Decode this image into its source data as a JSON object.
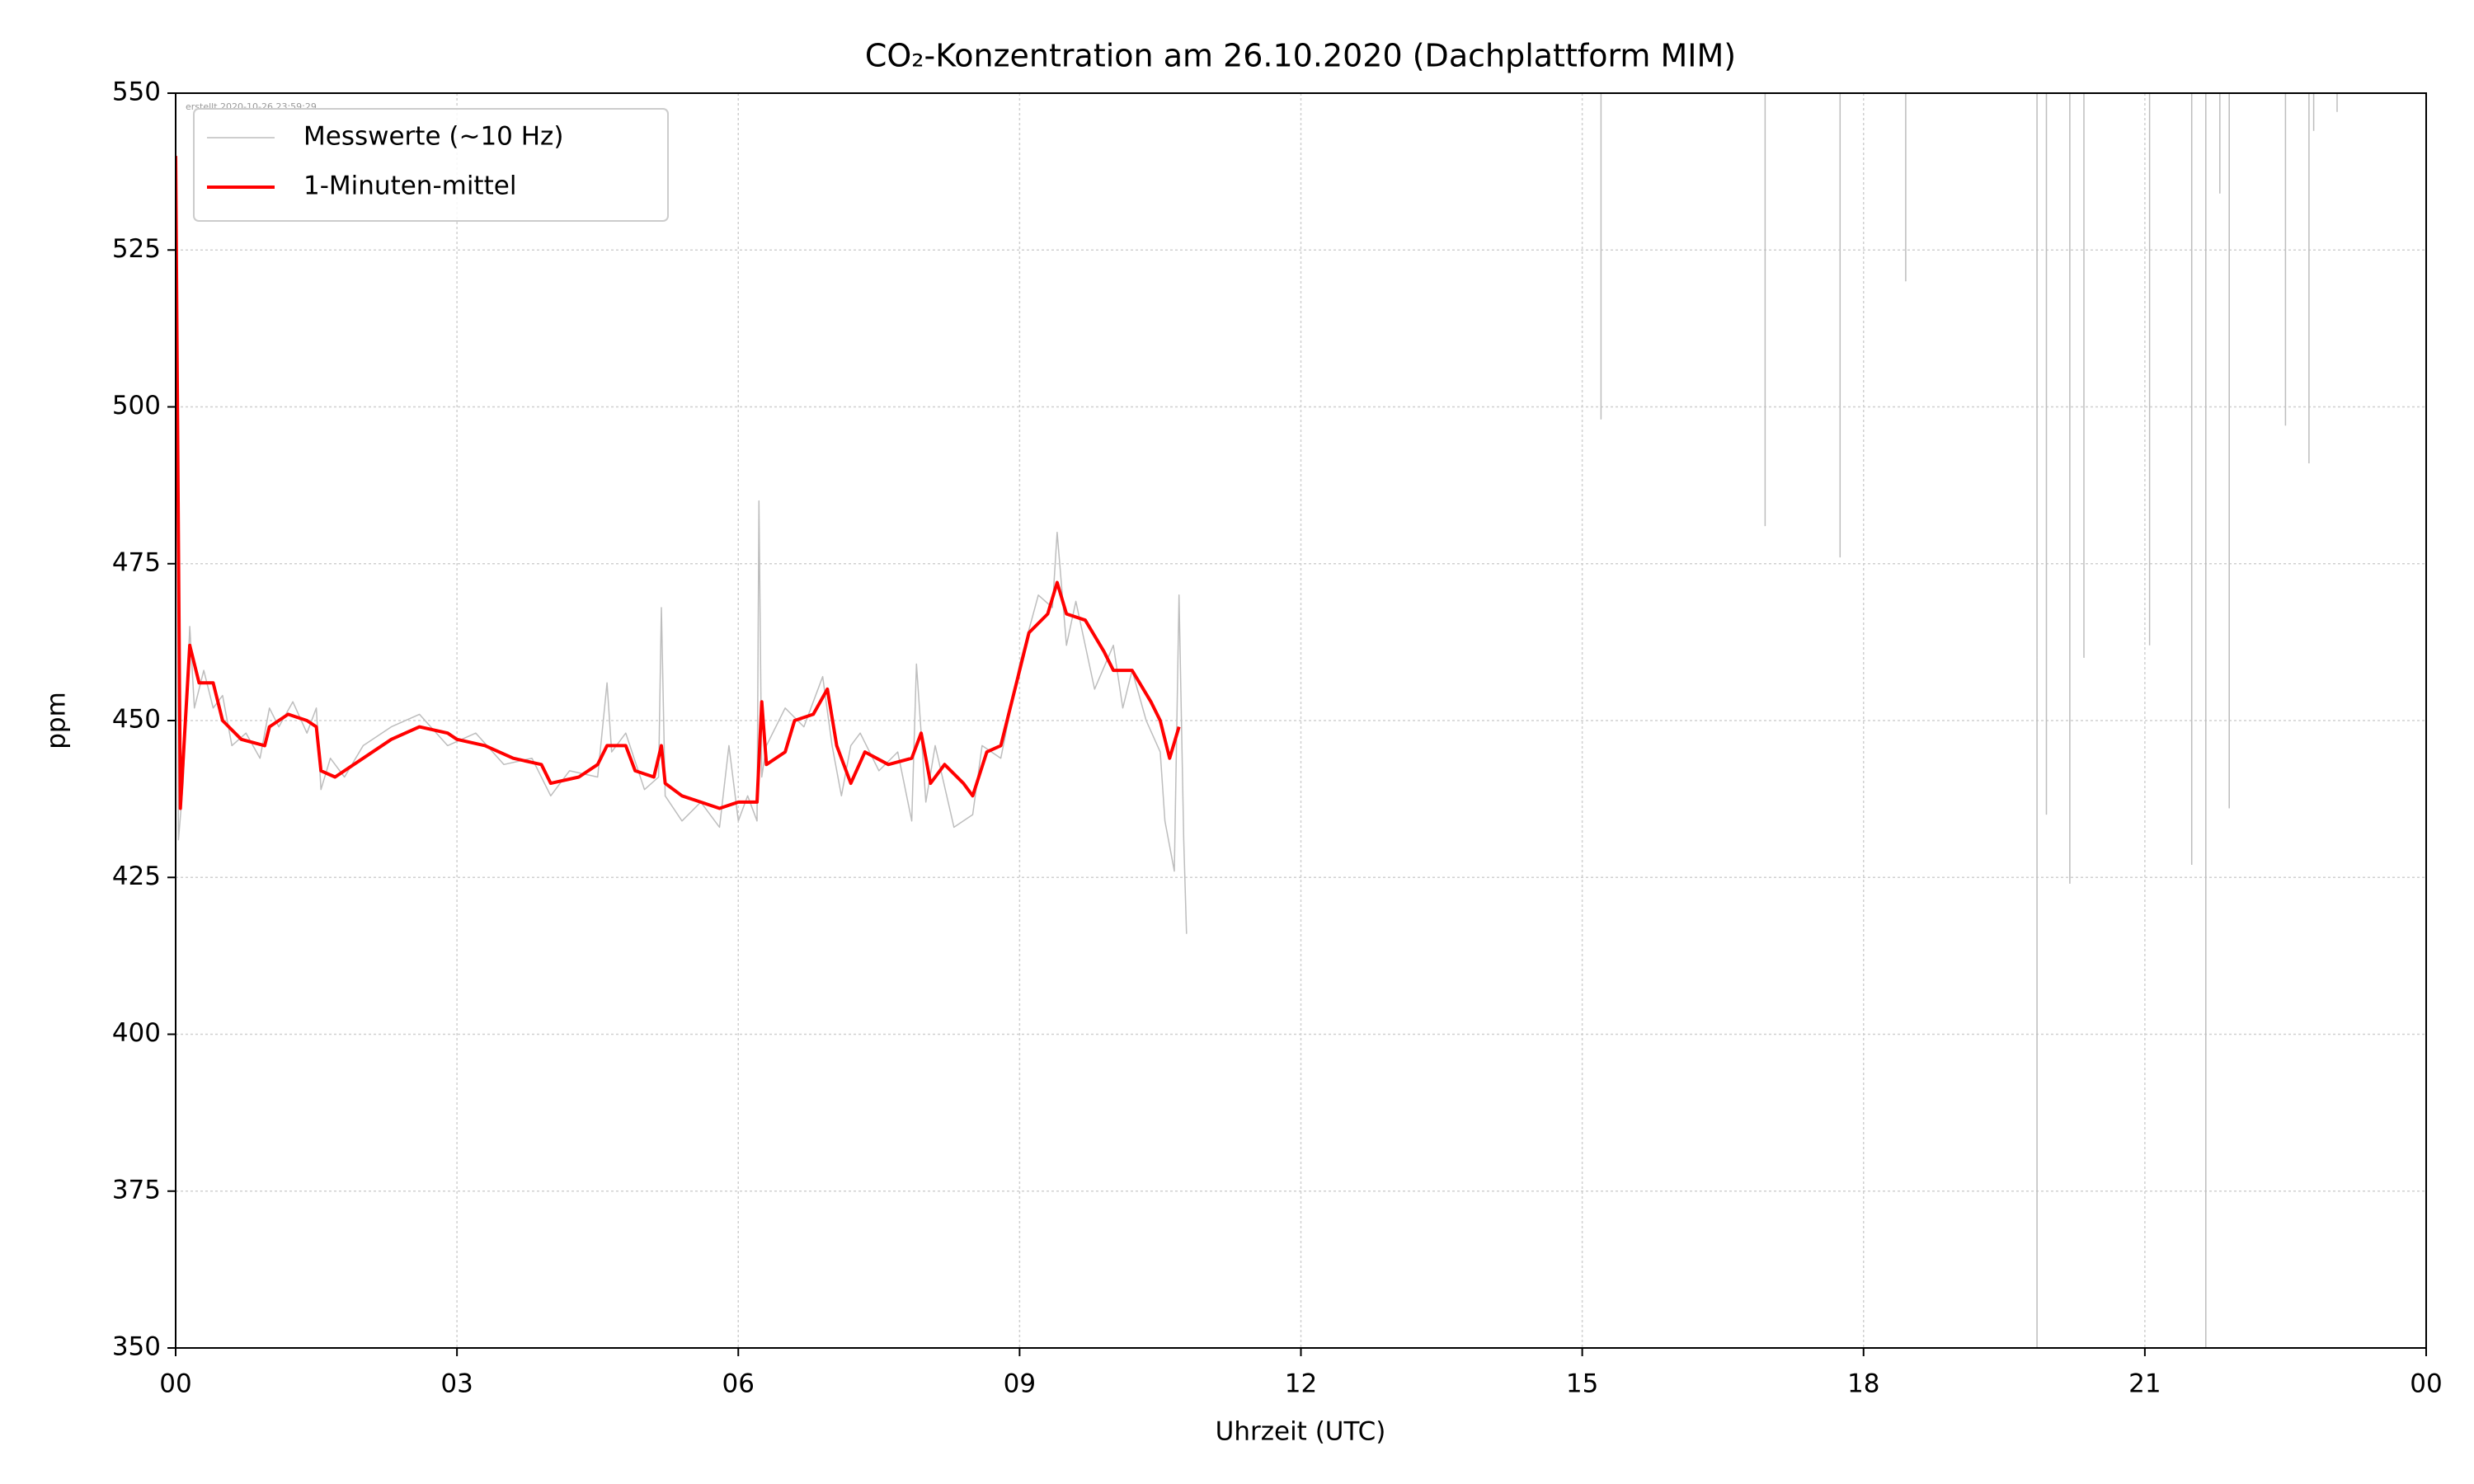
{
  "chart_data": {
    "type": "line",
    "title": "CO₂-Konzentration am 26.10.2020 (Dachplattform MIM)",
    "annotation": "erstellt 2020-10-26 23:59:29",
    "x_label": "Uhrzeit (UTC)",
    "y_label": "ppm",
    "xlim": [
      0,
      24
    ],
    "ylim": [
      350,
      550
    ],
    "xticks": [
      {
        "value": 0,
        "label": "00"
      },
      {
        "value": 3,
        "label": "03"
      },
      {
        "value": 6,
        "label": "06"
      },
      {
        "value": 9,
        "label": "09"
      },
      12,
      15,
      18,
      21,
      {
        "value": 24,
        "label": "00"
      }
    ],
    "yticks": [
      350,
      375,
      400,
      425,
      450,
      475,
      500,
      525,
      550
    ],
    "grid": true,
    "legend": "upper left",
    "series": [
      {
        "name": "Messwerte (~10 Hz)",
        "color": "#bdbdbd",
        "width": 1.5,
        "x": [
          0,
          0.03,
          0.08,
          0.15,
          0.2,
          0.3,
          0.4,
          0.5,
          0.6,
          0.75,
          0.9,
          1.0,
          1.1,
          1.25,
          1.4,
          1.5,
          1.55,
          1.65,
          1.8,
          2.0,
          2.3,
          2.6,
          2.9,
          3.2,
          3.5,
          3.8,
          4.0,
          4.2,
          4.5,
          4.6,
          4.65,
          4.8,
          5.0,
          5.15,
          5.18,
          5.22,
          5.4,
          5.6,
          5.8,
          5.9,
          6.0,
          6.1,
          6.2,
          6.22,
          6.25,
          6.3,
          6.5,
          6.7,
          6.9,
          7.0,
          7.1,
          7.2,
          7.3,
          7.5,
          7.7,
          7.85,
          7.9,
          8.0,
          8.1,
          8.3,
          8.5,
          8.6,
          8.8,
          9.0,
          9.2,
          9.35,
          9.4,
          9.5,
          9.6,
          9.8,
          10.0,
          10.1,
          10.2,
          10.35,
          10.5,
          10.55,
          10.6,
          10.65,
          10.7,
          10.75,
          10.78,
          null,
          15.2,
          15.2,
          null,
          16.95,
          16.95,
          null,
          17.75,
          17.75,
          null,
          18.45,
          18.45,
          null,
          19.85,
          19.85,
          null,
          19.95,
          19.95,
          null,
          20.2,
          20.2,
          null,
          20.35,
          20.35,
          null,
          21.05,
          21.05,
          null,
          21.5,
          21.5,
          null,
          21.65,
          21.65,
          null,
          21.8,
          21.8,
          null,
          21.9,
          21.9,
          null,
          22.5,
          22.5,
          null,
          22.75,
          22.75,
          null,
          22.8,
          22.8,
          null,
          23.05,
          23.05
        ],
        "values": [
          545,
          431,
          440,
          465,
          452,
          458,
          452,
          454,
          446,
          448,
          444,
          452,
          449,
          453,
          448,
          452,
          439,
          444,
          441,
          446,
          449,
          451,
          446,
          448,
          443,
          444,
          438,
          442,
          441,
          456,
          445,
          448,
          439,
          441,
          468,
          438,
          434,
          437,
          433,
          446,
          434,
          438,
          434,
          485,
          441,
          446,
          452,
          449,
          457,
          446,
          438,
          446,
          448,
          442,
          445,
          434,
          459,
          437,
          446,
          433,
          435,
          446,
          444,
          459,
          470,
          468,
          480,
          462,
          469,
          455,
          462,
          452,
          458,
          450,
          445,
          434,
          430,
          426,
          470,
          431,
          416,
          null,
          560,
          498,
          null,
          560,
          481,
          null,
          560,
          476,
          null,
          560,
          520,
          null,
          560,
          340,
          null,
          560,
          435,
          null,
          560,
          424,
          null,
          560,
          460,
          null,
          560,
          462,
          null,
          560,
          427,
          null,
          560,
          340,
          null,
          560,
          534,
          null,
          560,
          436,
          null,
          560,
          497,
          null,
          560,
          491,
          null,
          560,
          544,
          null,
          560,
          547
        ]
      },
      {
        "name": "1-Minuten-mittel",
        "color": "#ff0000",
        "width": 4,
        "x": [
          0,
          0.05,
          0.15,
          0.25,
          0.4,
          0.5,
          0.7,
          0.95,
          1.0,
          1.2,
          1.4,
          1.5,
          1.55,
          1.7,
          2.0,
          2.3,
          2.6,
          2.9,
          3.0,
          3.3,
          3.6,
          3.9,
          4.0,
          4.3,
          4.5,
          4.6,
          4.8,
          4.9,
          5.1,
          5.18,
          5.22,
          5.4,
          5.6,
          5.8,
          6.0,
          6.2,
          6.25,
          6.3,
          6.5,
          6.6,
          6.8,
          6.95,
          7.05,
          7.2,
          7.35,
          7.6,
          7.85,
          7.95,
          8.05,
          8.2,
          8.4,
          8.5,
          8.65,
          8.8,
          9.0,
          9.1,
          9.3,
          9.4,
          9.5,
          9.7,
          9.9,
          10.0,
          10.2,
          10.4,
          10.5,
          10.6,
          10.7
        ],
        "values": [
          540,
          436,
          462,
          456,
          456,
          450,
          447,
          446,
          449,
          451,
          450,
          449,
          442,
          441,
          444,
          447,
          449,
          448,
          447,
          446,
          444,
          443,
          440,
          441,
          443,
          446,
          446,
          442,
          441,
          446,
          440,
          438,
          437,
          436,
          437,
          437,
          453,
          443,
          445,
          450,
          451,
          455,
          446,
          440,
          445,
          443,
          444,
          448,
          440,
          443,
          440,
          438,
          445,
          446,
          458,
          464,
          467,
          472,
          467,
          466,
          461,
          458,
          458,
          453,
          450,
          444,
          449
        ]
      }
    ]
  }
}
